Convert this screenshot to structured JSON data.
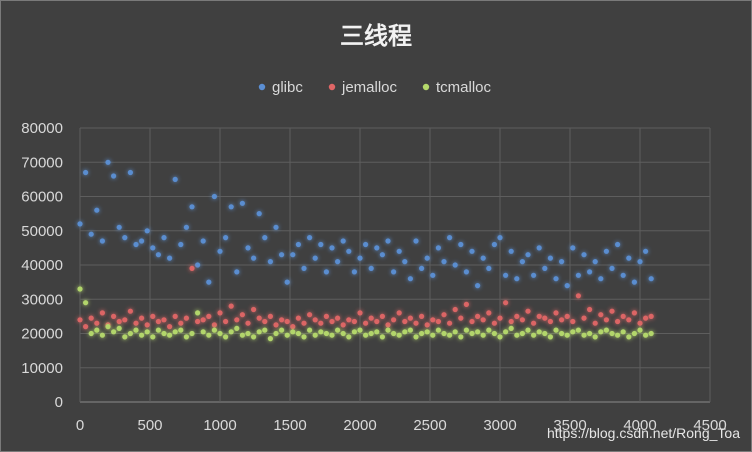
{
  "chart_data": {
    "type": "scatter",
    "title": "三线程",
    "legend_position": "top-center",
    "grid": true,
    "xlim": [
      0,
      4500
    ],
    "ylim": [
      0,
      80000
    ],
    "x_ticks": [
      "0",
      "500",
      "1000",
      "1500",
      "2000",
      "2500",
      "3000",
      "3500",
      "4000",
      "4500"
    ],
    "y_ticks": [
      "0",
      "10000",
      "20000",
      "30000",
      "40000",
      "50000",
      "60000",
      "70000",
      "80000"
    ],
    "x": [
      0,
      40,
      80,
      120,
      160,
      200,
      240,
      280,
      320,
      360,
      400,
      440,
      480,
      520,
      560,
      600,
      640,
      680,
      720,
      760,
      800,
      840,
      880,
      920,
      960,
      1000,
      1040,
      1080,
      1120,
      1160,
      1200,
      1240,
      1280,
      1320,
      1360,
      1400,
      1440,
      1480,
      1520,
      1560,
      1600,
      1640,
      1680,
      1720,
      1760,
      1800,
      1840,
      1880,
      1920,
      1960,
      2000,
      2040,
      2080,
      2120,
      2160,
      2200,
      2240,
      2280,
      2320,
      2360,
      2400,
      2440,
      2480,
      2520,
      2560,
      2600,
      2640,
      2680,
      2720,
      2760,
      2800,
      2840,
      2880,
      2920,
      2960,
      3000,
      3040,
      3080,
      3120,
      3160,
      3200,
      3240,
      3280,
      3320,
      3360,
      3400,
      3440,
      3480,
      3520,
      3560,
      3600,
      3640,
      3680,
      3720,
      3760,
      3800,
      3840,
      3880,
      3920,
      3960,
      4000,
      4040,
      4080
    ],
    "series": [
      {
        "name": "glibc",
        "color": "#5b8fd4",
        "values": [
          52000,
          67000,
          49000,
          56000,
          47000,
          70000,
          66000,
          51000,
          48000,
          67000,
          46000,
          47000,
          50000,
          45000,
          43000,
          48000,
          42000,
          65000,
          46000,
          51000,
          57000,
          40000,
          47000,
          35000,
          60000,
          44000,
          48000,
          57000,
          38000,
          58000,
          45000,
          42000,
          55000,
          48000,
          41000,
          51000,
          43000,
          35000,
          43000,
          46000,
          39000,
          48000,
          42000,
          46000,
          38000,
          45000,
          41000,
          47000,
          44000,
          38000,
          42000,
          46000,
          39000,
          45000,
          43000,
          47000,
          38000,
          44000,
          41000,
          36000,
          47000,
          39000,
          42000,
          37000,
          45000,
          41000,
          48000,
          40000,
          46000,
          38000,
          44000,
          34000,
          42000,
          39000,
          46000,
          48000,
          37000,
          44000,
          36000,
          41000,
          43000,
          37000,
          45000,
          39000,
          42000,
          36000,
          41000,
          34000,
          45000,
          37000,
          43000,
          38000,
          41000,
          36000,
          44000,
          39000,
          46000,
          37000,
          42000,
          35000,
          41000,
          44000,
          36000
        ]
      },
      {
        "name": "jemalloc",
        "color": "#e06666",
        "values": [
          24000,
          22000,
          24500,
          23000,
          26000,
          22500,
          25000,
          23500,
          24000,
          26500,
          23000,
          24500,
          22500,
          25000,
          23500,
          24000,
          22000,
          25000,
          23000,
          24500,
          39000,
          23500,
          24000,
          25000,
          22500,
          26000,
          23500,
          28000,
          24000,
          25500,
          23000,
          27000,
          24500,
          23500,
          25000,
          22500,
          24000,
          23500,
          22000,
          24500,
          23000,
          25500,
          24000,
          23000,
          25000,
          23500,
          24500,
          22500,
          24000,
          23500,
          26000,
          23000,
          24500,
          23500,
          25000,
          22500,
          24000,
          26000,
          23500,
          24500,
          23000,
          25000,
          22500,
          24000,
          23500,
          25500,
          23000,
          27000,
          24500,
          28500,
          23500,
          25000,
          24000,
          26000,
          23000,
          24500,
          29000,
          23500,
          25000,
          24000,
          26500,
          23000,
          25000,
          24500,
          23500,
          26000,
          24000,
          25000,
          23500,
          31000,
          24500,
          27000,
          23000,
          25500,
          24000,
          26500,
          23500,
          25000,
          24000,
          26000,
          23000,
          24500,
          25000
        ]
      },
      {
        "name": "tcmalloc",
        "color": "#b5d96b",
        "values": [
          33000,
          29000,
          20000,
          21000,
          19500,
          22000,
          20500,
          21500,
          19000,
          20000,
          21000,
          19500,
          20500,
          19000,
          21000,
          20000,
          19500,
          20500,
          21000,
          19000,
          20000,
          26000,
          20500,
          19500,
          21000,
          20000,
          19000,
          20500,
          21500,
          19500,
          20000,
          19000,
          20500,
          21000,
          18500,
          20000,
          21000,
          19500,
          20500,
          20000,
          19000,
          21000,
          19500,
          20500,
          20000,
          19500,
          21000,
          20000,
          19000,
          20500,
          21000,
          19500,
          20000,
          20500,
          19000,
          21000,
          20000,
          19500,
          20500,
          21000,
          19000,
          20000,
          20500,
          19500,
          21000,
          20000,
          19500,
          20500,
          19000,
          21000,
          20000,
          20500,
          19500,
          21000,
          20000,
          19000,
          20500,
          21500,
          19500,
          20000,
          21000,
          19500,
          20500,
          20000,
          19000,
          21000,
          20000,
          19500,
          20500,
          21000,
          19500,
          20000,
          19000,
          20500,
          21000,
          20000,
          19500,
          20500,
          19000,
          20000,
          21000,
          19500,
          20000
        ]
      }
    ]
  },
  "watermark": "https://blog.csdn.net/Rong_Toa"
}
